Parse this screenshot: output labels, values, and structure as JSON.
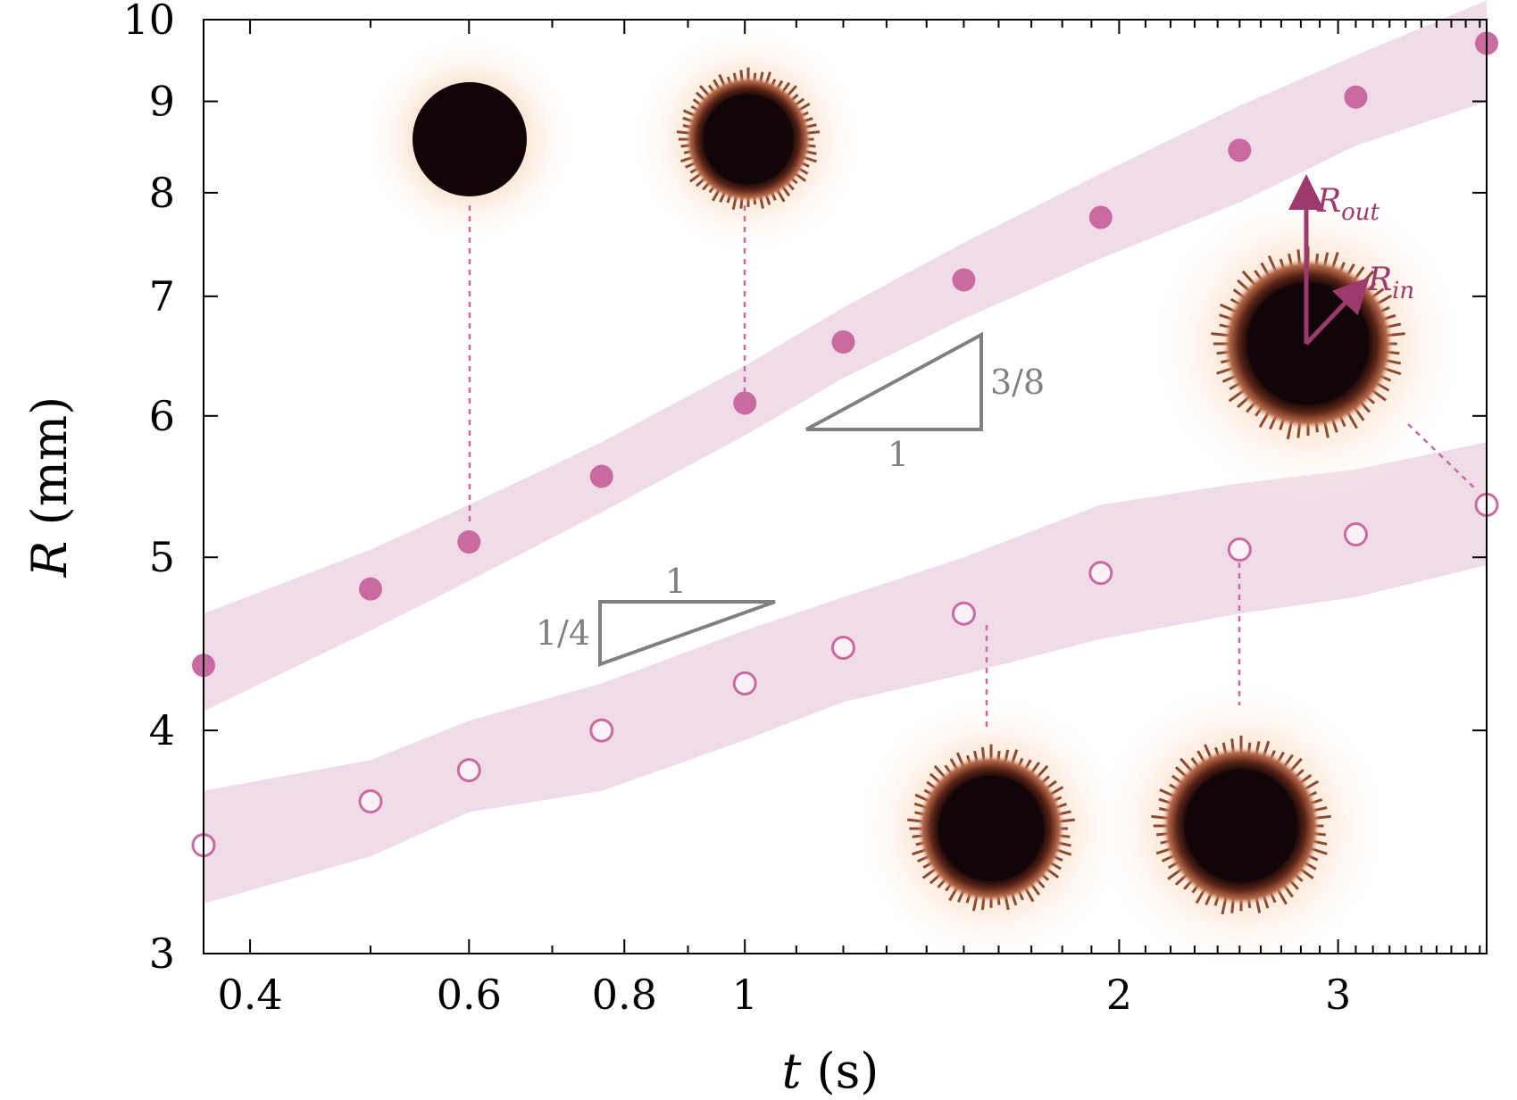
{
  "chart_data": {
    "type": "scatter",
    "xscale": "log",
    "yscale": "log",
    "xlabel_var": "t",
    "xlabel_unit": " (s)",
    "ylabel_var": "R",
    "ylabel_unit": " (mm)",
    "xlim": [
      0.367,
      3.95
    ],
    "ylim": [
      3,
      10
    ],
    "xticks": [
      {
        "value": 0.4,
        "label": "0.4"
      },
      {
        "value": 0.6,
        "label": "0.6"
      },
      {
        "value": 0.8,
        "label": "0.8"
      },
      {
        "value": 1,
        "label": "1"
      },
      {
        "value": 2,
        "label": "2"
      },
      {
        "value": 3,
        "label": "3"
      }
    ],
    "yticks": [
      {
        "value": 3,
        "label": "3"
      },
      {
        "value": 4,
        "label": "4"
      },
      {
        "value": 5,
        "label": "5"
      },
      {
        "value": 6,
        "label": "6"
      },
      {
        "value": 7,
        "label": "7"
      },
      {
        "value": 8,
        "label": "8"
      },
      {
        "value": 9,
        "label": "9"
      },
      {
        "value": 10,
        "label": "10"
      }
    ],
    "series": [
      {
        "name": "R_out",
        "marker": "filled-circle",
        "color": "#c96aa0",
        "x": [
          0.367,
          0.5,
          0.6,
          0.767,
          1.0,
          1.2,
          1.5,
          1.933,
          2.5,
          3.1,
          3.95
        ],
        "y": [
          4.35,
          4.8,
          5.1,
          5.55,
          6.1,
          6.6,
          7.15,
          7.75,
          8.45,
          9.05,
          9.7
        ],
        "band_upper": [
          4.65,
          5.05,
          5.35,
          5.8,
          6.4,
          6.9,
          7.5,
          8.2,
          8.95,
          9.55,
          10.25
        ],
        "band_lower": [
          4.1,
          4.55,
          4.85,
          5.3,
          5.85,
          6.3,
          6.8,
          7.35,
          7.9,
          8.5,
          9.0
        ]
      },
      {
        "name": "R_in",
        "marker": "open-circle",
        "color": "#c96aa0",
        "x": [
          0.367,
          0.5,
          0.6,
          0.767,
          1.0,
          1.2,
          1.5,
          1.933,
          2.5,
          3.1,
          3.95
        ],
        "y": [
          3.45,
          3.65,
          3.8,
          4.0,
          4.25,
          4.45,
          4.65,
          4.9,
          5.05,
          5.15,
          5.35
        ],
        "band_upper": [
          3.7,
          3.85,
          4.05,
          4.25,
          4.55,
          4.75,
          5.0,
          5.35,
          5.5,
          5.6,
          5.8
        ],
        "band_lower": [
          3.2,
          3.4,
          3.6,
          3.7,
          3.95,
          4.15,
          4.3,
          4.5,
          4.65,
          4.75,
          4.95
        ]
      }
    ],
    "slope_triangles": [
      {
        "slope_label": "3/8",
        "run_label": "1"
      },
      {
        "slope_label": "1/4",
        "run_label": "1"
      }
    ],
    "inset_arrows": [
      {
        "label": "R",
        "subscript": "out"
      },
      {
        "label": "R",
        "subscript": "in"
      }
    ]
  },
  "colors": {
    "marker": "#c96aa0",
    "band": "#f0dce8",
    "triangle": "#808080",
    "arrow": "#9c3a6e",
    "droplet_core": "#120508",
    "droplet_rim": "#7a3a22",
    "droplet_glow": "#f7cfb0"
  }
}
